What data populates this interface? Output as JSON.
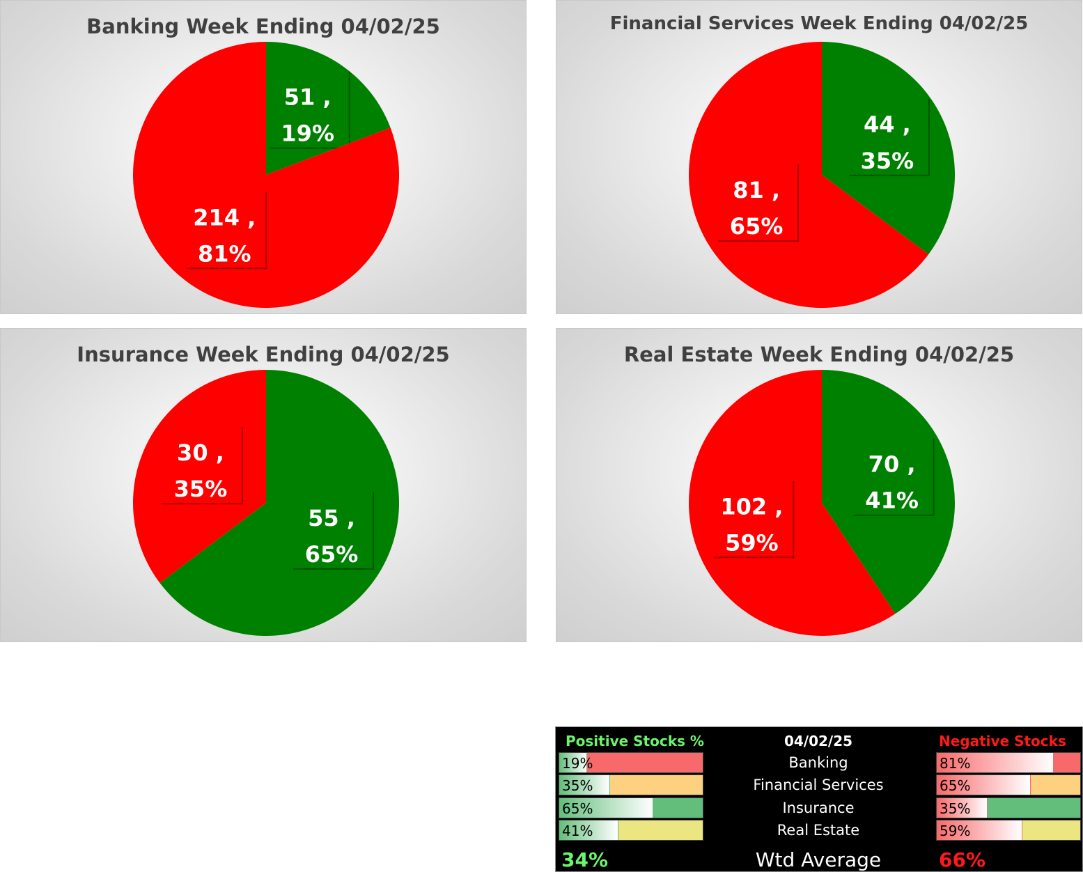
{
  "colors": {
    "positive": "#008000",
    "negative": "#ff0000"
  },
  "chart_data": [
    {
      "type": "pie",
      "title": "Banking Week Ending 04/02/25",
      "slices": [
        {
          "value": 51,
          "pct": "19%",
          "color": "positive"
        },
        {
          "value": 214,
          "pct": "81%",
          "color": "negative"
        }
      ]
    },
    {
      "type": "pie",
      "title": "Financial Services Week Ending 04/02/25",
      "slices": [
        {
          "value": 44,
          "pct": "35%",
          "color": "positive"
        },
        {
          "value": 81,
          "pct": "65%",
          "color": "negative"
        }
      ]
    },
    {
      "type": "pie",
      "title": "Insurance Week Ending 04/02/25",
      "slices": [
        {
          "value": 55,
          "pct": "65%",
          "color": "positive"
        },
        {
          "value": 30,
          "pct": "35%",
          "color": "negative"
        }
      ]
    },
    {
      "type": "pie",
      "title": "Real Estate Week Ending 04/02/25",
      "slices": [
        {
          "value": 70,
          "pct": "41%",
          "color": "positive"
        },
        {
          "value": 102,
          "pct": "59%",
          "color": "negative"
        }
      ]
    }
  ],
  "summary": {
    "header_positive": "Positive Stocks %",
    "header_date": "04/02/25",
    "header_negative": "Negative Stocks %",
    "rows": [
      {
        "sector": "Banking",
        "pos": "19%",
        "pos_frac": 0.19,
        "neg": "81%",
        "neg_frac": 0.81,
        "pos_bg": "#f8696b",
        "neg_bg": "#f8696b"
      },
      {
        "sector": "Financial Services",
        "pos": "35%",
        "pos_frac": 0.35,
        "neg": "65%",
        "neg_frac": 0.65,
        "pos_bg": "#fdd17f",
        "neg_bg": "#fdd17f"
      },
      {
        "sector": "Insurance",
        "pos": "65%",
        "pos_frac": 0.65,
        "neg": "35%",
        "neg_frac": 0.35,
        "pos_bg": "#63be7b",
        "neg_bg": "#63be7b"
      },
      {
        "sector": "Real Estate",
        "pos": "41%",
        "pos_frac": 0.41,
        "neg": "59%",
        "neg_frac": 0.59,
        "pos_bg": "#ebe582",
        "neg_bg": "#ebe582"
      }
    ],
    "footer_pos": "34%",
    "footer_label": "Wtd Average",
    "footer_neg": "66%"
  }
}
